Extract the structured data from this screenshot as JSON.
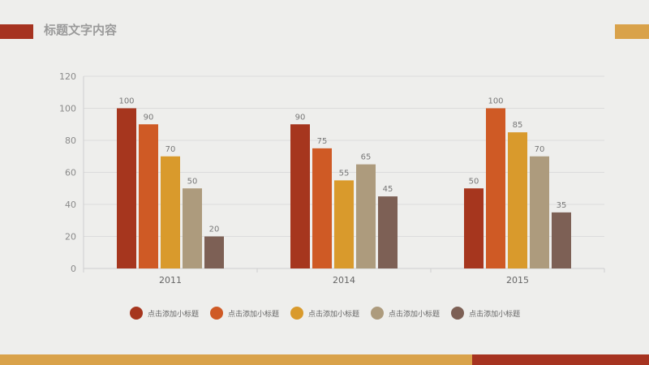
{
  "header": {
    "title": "标题文字内容",
    "accent_left_color": "#a63320",
    "accent_right_color": "#d9a24a"
  },
  "footer": {
    "left_color": "#d9a24a",
    "right_color": "#a63320"
  },
  "chart_data": {
    "type": "bar",
    "title": "",
    "xlabel": "",
    "ylabel": "",
    "ylim": [
      0,
      120
    ],
    "yticks": [
      0,
      20,
      40,
      60,
      80,
      100,
      120
    ],
    "categories": [
      "2011",
      "2014",
      "2015"
    ],
    "grid": true,
    "legend_position": "bottom",
    "series": [
      {
        "name": "点击添加小标题",
        "color": "#a6361e",
        "values": [
          100,
          90,
          50
        ]
      },
      {
        "name": "点击添加小标题",
        "color": "#cf5a25",
        "values": [
          90,
          75,
          100
        ]
      },
      {
        "name": "点击添加小标题",
        "color": "#d99a2c",
        "values": [
          70,
          55,
          85
        ]
      },
      {
        "name": "点击添加小标题",
        "color": "#ad9b7d",
        "values": [
          50,
          65,
          70
        ]
      },
      {
        "name": "点击添加小标题",
        "color": "#7d6055",
        "values": [
          20,
          45,
          35
        ]
      }
    ]
  }
}
